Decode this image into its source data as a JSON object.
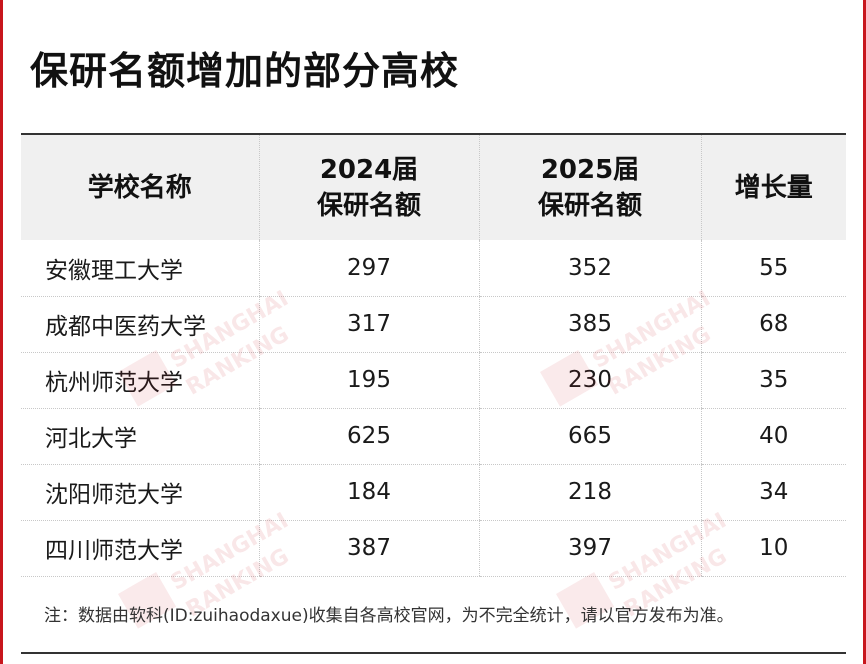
{
  "title": "保研名额增加的部分高校",
  "table": {
    "headers": {
      "school": "学校名称",
      "y2024_line1": "2024届",
      "y2024_line2": "保研名额",
      "y2025_line1": "2025届",
      "y2025_line2": "保研名额",
      "increase": "增长量"
    },
    "rows": [
      {
        "school": "安徽理工大学",
        "y2024": "297",
        "y2025": "352",
        "increase": "55"
      },
      {
        "school": "成都中医药大学",
        "y2024": "317",
        "y2025": "385",
        "increase": "68"
      },
      {
        "school": "杭州师范大学",
        "y2024": "195",
        "y2025": "230",
        "increase": "35"
      },
      {
        "school": "河北大学",
        "y2024": "625",
        "y2025": "665",
        "increase": "40"
      },
      {
        "school": "沈阳师范大学",
        "y2024": "184",
        "y2025": "218",
        "increase": "34"
      },
      {
        "school": "四川师范大学",
        "y2024": "387",
        "y2025": "397",
        "increase": "10"
      }
    ]
  },
  "note": "注：数据由软科(ID:zuihaodaxue)收集自各高校官网，为不完全统计，请以官方发布为准。",
  "watermark": {
    "line1": "SHANGHAI",
    "line2": "RANKING"
  },
  "colors": {
    "accent": "#c8161d",
    "header_bg": "#f0f0f0"
  }
}
